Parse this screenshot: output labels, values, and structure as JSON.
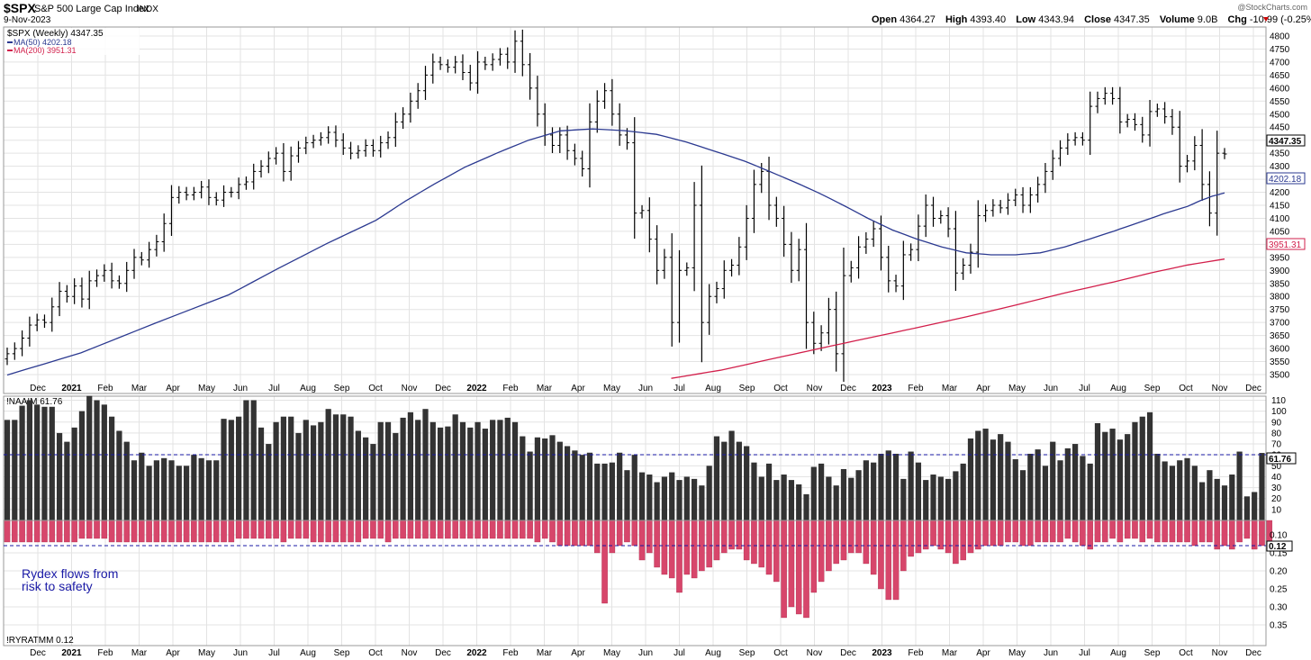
{
  "header": {
    "symbol": "$SPX",
    "name": "S&P 500 Large Cap Index",
    "exchange": "INDX",
    "date": "9-Nov-2023",
    "watermark": "@StockCharts.com",
    "quote": {
      "open_label": "Open",
      "open": "4364.27",
      "high_label": "High",
      "high": "4393.40",
      "low_label": "Low",
      "low": "4343.94",
      "close_label": "Close",
      "close": "4347.35",
      "volume_label": "Volume",
      "volume": "9.0B",
      "chg_label": "Chg",
      "chg": "-10.99 (-0.25%)"
    }
  },
  "legend": {
    "main": "$SPX (Weekly) 4347.35",
    "ma50": "MA(50) 4202.18",
    "ma200": "MA(200) 3951.31",
    "naaim": "!NAAIM 61.76",
    "ryratmm": "!RYRATMM 0.12"
  },
  "annotation": {
    "line1": "Rydex flows from",
    "line2": "risk to safety"
  },
  "badges": {
    "close": "4347.35",
    "ma50": "4202.18",
    "ma200": "3951.31",
    "naaim": "61.76",
    "ryratmm": "0.12"
  },
  "x_axis": [
    "Dec",
    "2021",
    "Feb",
    "Mar",
    "Apr",
    "May",
    "Jun",
    "Jul",
    "Aug",
    "Sep",
    "Oct",
    "Nov",
    "Dec",
    "2022",
    "Feb",
    "Mar",
    "Apr",
    "May",
    "Jun",
    "Jul",
    "Aug",
    "Sep",
    "Oct",
    "Nov",
    "Dec",
    "2023",
    "Feb",
    "Mar",
    "Apr",
    "May",
    "Jun",
    "Jul",
    "Aug",
    "Sep",
    "Oct",
    "Nov",
    "Dec"
  ],
  "y_axis_price": [
    "4800",
    "4750",
    "4700",
    "4650",
    "4600",
    "4550",
    "4500",
    "4450",
    "4400",
    "4350",
    "4300",
    "4250",
    "4200",
    "4150",
    "4100",
    "4050",
    "4000",
    "3950",
    "3900",
    "3850",
    "3800",
    "3750",
    "3700",
    "3650",
    "3600",
    "3550",
    "3500"
  ],
  "y_axis_naaim": [
    "110",
    "100",
    "90",
    "80",
    "70",
    "60",
    "50",
    "40",
    "30",
    "20",
    "10"
  ],
  "y_axis_rydex": [
    "0.10",
    "0.15",
    "0.20",
    "0.25",
    "0.30",
    "0.35"
  ],
  "colors": {
    "price": "#000000",
    "ma50": "#2b3990",
    "ma200": "#d21f4b",
    "naaim_bar": "#333333",
    "rydex_bar": "#d7466b",
    "reference": "#1a1aa6",
    "annotation": "#1a1aa6",
    "grid": "#dddddd"
  },
  "chart_data": [
    {
      "type": "ohlc",
      "title": "$SPX S&P 500 Large Cap Index",
      "series": [
        {
          "name": "$SPX (Weekly)",
          "close": [
            3580,
            3600,
            3640,
            3690,
            3710,
            3700,
            3760,
            3820,
            3800,
            3840,
            3790,
            3860,
            3880,
            3900,
            3860,
            3850,
            3900,
            3950,
            3940,
            3980,
            4010,
            4080,
            4180,
            4200,
            4190,
            4200,
            4220,
            4180,
            4170,
            4200,
            4200,
            4230,
            4240,
            4280,
            4300,
            4330,
            4350,
            4280,
            4340,
            4370,
            4390,
            4400,
            4410,
            4430,
            4400,
            4370,
            4350,
            4360,
            4380,
            4360,
            4390,
            4410,
            4470,
            4500,
            4550,
            4590,
            4650,
            4700,
            4690,
            4680,
            4700,
            4660,
            4620,
            4700,
            4690,
            4710,
            4730,
            4700,
            4780,
            4690,
            4600,
            4500,
            4420,
            4380,
            4420,
            4360,
            4330,
            4290,
            4470,
            4550,
            4590,
            4500,
            4420,
            4390,
            4120,
            4130,
            4020,
            3900,
            3950,
            3700,
            3900,
            3910,
            4150,
            3700,
            3800,
            3830,
            3900,
            3920,
            3990,
            4100,
            4230,
            4280,
            4150,
            4100,
            4000,
            3900,
            3980,
            3700,
            3620,
            3660,
            3750,
            3580,
            3880,
            3910,
            3990,
            4020,
            4060,
            3950,
            3860,
            3840,
            3960,
            3980,
            4070,
            4150,
            4100,
            4110,
            4060,
            3890,
            3920,
            3970,
            4110,
            4130,
            4150,
            4140,
            4170,
            4190,
            4150,
            4190,
            4230,
            4280,
            4330,
            4370,
            4400,
            4410,
            4400,
            4530,
            4560,
            4580,
            4560,
            4470,
            4480,
            4460,
            4420,
            4510,
            4520,
            4490,
            4450,
            4300,
            4320,
            4380,
            4230,
            4120,
            4350,
            4347
          ]
        },
        {
          "name": "MA(50)",
          "points": [
            [
              0,
              3470
            ],
            [
              30,
              3810
            ],
            [
              50,
              4100
            ],
            [
              62,
              4300
            ],
            [
              75,
              4450
            ],
            [
              88,
              4430
            ],
            [
              100,
              4320
            ],
            [
              110,
              4200
            ],
            [
              120,
              4050
            ],
            [
              130,
              3960
            ],
            [
              140,
              3960
            ],
            [
              150,
              4050
            ],
            [
              160,
              4150
            ],
            [
              165,
              4202.18
            ]
          ]
        },
        {
          "name": "MA(200)",
          "points": [
            [
              90,
              3475
            ],
            [
              110,
              3600
            ],
            [
              130,
              3720
            ],
            [
              150,
              3860
            ],
            [
              165,
              3951.31
            ]
          ]
        }
      ],
      "ylim": [
        3475,
        4830
      ]
    },
    {
      "type": "bar",
      "series": [
        {
          "name": "!NAAIM",
          "values": [
            92,
            92,
            105,
            110,
            106,
            104,
            104,
            80,
            72,
            85,
            100,
            114,
            110,
            106,
            95,
            82,
            72,
            55,
            62,
            50,
            55,
            57,
            55,
            50,
            50,
            60,
            57,
            55,
            55,
            93,
            92,
            95,
            110,
            110,
            85,
            70,
            90,
            95,
            95,
            80,
            92,
            87,
            90,
            102,
            97,
            97,
            95,
            82,
            76,
            70,
            90,
            90,
            80,
            94,
            99,
            92,
            102,
            90,
            85,
            86,
            97,
            90,
            85,
            90,
            84,
            92,
            92,
            94,
            90,
            77,
            63,
            76,
            75,
            78,
            72,
            68,
            64,
            60,
            62,
            52,
            52,
            53,
            62,
            46,
            60,
            44,
            42,
            35,
            40,
            44,
            37,
            40,
            38,
            32,
            50,
            77,
            72,
            82,
            72,
            68,
            53,
            40,
            52,
            37,
            42,
            37,
            33,
            24,
            49,
            52,
            40,
            32,
            47,
            39,
            46,
            55,
            53,
            61,
            64,
            61,
            38,
            63,
            53,
            37,
            42,
            40,
            38,
            45,
            52,
            75,
            82,
            84,
            74,
            79,
            72,
            56,
            46,
            61,
            65,
            50,
            72,
            55,
            66,
            70,
            59,
            52,
            89,
            81,
            84,
            74,
            79,
            90,
            95,
            99,
            61,
            54,
            50,
            55,
            57,
            50,
            35,
            46,
            38,
            32,
            42,
            63,
            22,
            26,
            61.76
          ]
        }
      ],
      "ylim": [
        0,
        115
      ]
    },
    {
      "type": "bar",
      "series": [
        {
          "name": "!RYRATMM",
          "values": [
            0.12,
            0.12,
            0.12,
            0.12,
            0.12,
            0.12,
            0.12,
            0.12,
            0.12,
            0.12,
            0.11,
            0.11,
            0.11,
            0.11,
            0.12,
            0.12,
            0.12,
            0.12,
            0.12,
            0.12,
            0.12,
            0.12,
            0.12,
            0.12,
            0.12,
            0.12,
            0.12,
            0.12,
            0.12,
            0.12,
            0.12,
            0.11,
            0.11,
            0.11,
            0.11,
            0.11,
            0.11,
            0.12,
            0.11,
            0.11,
            0.11,
            0.12,
            0.12,
            0.12,
            0.12,
            0.12,
            0.12,
            0.12,
            0.11,
            0.11,
            0.11,
            0.12,
            0.11,
            0.11,
            0.11,
            0.11,
            0.11,
            0.11,
            0.11,
            0.11,
            0.11,
            0.11,
            0.11,
            0.11,
            0.11,
            0.11,
            0.11,
            0.11,
            0.11,
            0.11,
            0.11,
            0.12,
            0.11,
            0.12,
            0.13,
            0.13,
            0.13,
            0.13,
            0.13,
            0.15,
            0.29,
            0.15,
            0.13,
            0.12,
            0.13,
            0.17,
            0.15,
            0.19,
            0.21,
            0.22,
            0.26,
            0.21,
            0.22,
            0.2,
            0.19,
            0.17,
            0.15,
            0.14,
            0.14,
            0.17,
            0.18,
            0.19,
            0.21,
            0.23,
            0.33,
            0.3,
            0.32,
            0.33,
            0.26,
            0.23,
            0.2,
            0.18,
            0.17,
            0.15,
            0.15,
            0.18,
            0.21,
            0.25,
            0.28,
            0.28,
            0.2,
            0.16,
            0.15,
            0.14,
            0.13,
            0.14,
            0.15,
            0.18,
            0.17,
            0.15,
            0.14,
            0.13,
            0.13,
            0.13,
            0.12,
            0.12,
            0.13,
            0.13,
            0.12,
            0.12,
            0.12,
            0.12,
            0.11,
            0.12,
            0.13,
            0.14,
            0.12,
            0.12,
            0.11,
            0.12,
            0.11,
            0.11,
            0.12,
            0.11,
            0.12,
            0.12,
            0.12,
            0.12,
            0.12,
            0.13,
            0.12,
            0.12,
            0.14,
            0.13,
            0.14,
            0.12,
            0.11,
            0.14,
            0.13,
            0.12
          ]
        }
      ],
      "ylim": [
        0.06,
        0.37
      ]
    }
  ]
}
